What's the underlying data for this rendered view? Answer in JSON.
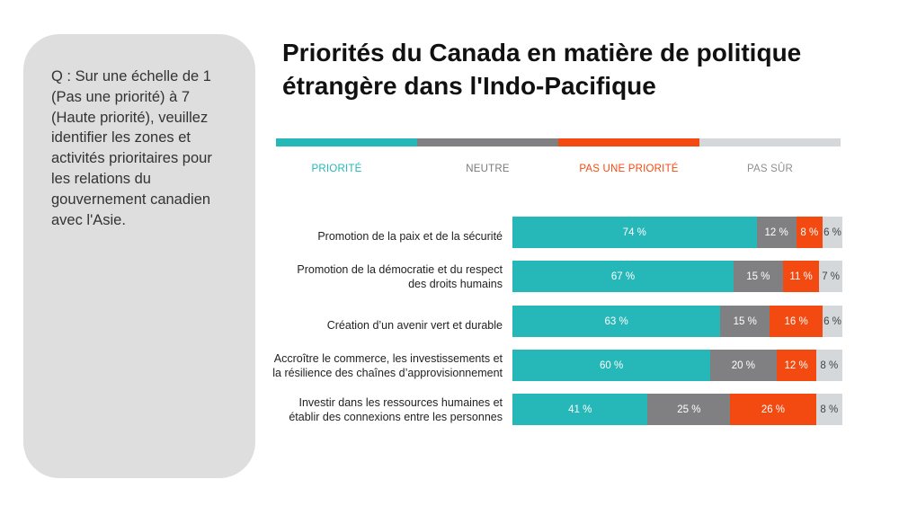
{
  "question": "Q : Sur une échelle de 1 (Pas une priorité) à 7 (Haute priorité), veuillez identifier les zones et activités prioritaires pour les relations du gouvernement canadien avec l'Asie.",
  "title_line1": "Priorités du Canada en matière de politique",
  "title_line2": "étrangère dans l'Indo-Pacifique",
  "colors": {
    "priorite": "#26b7b8",
    "neutre": "#808083",
    "pas_une_priorite": "#f24a10",
    "pas_sur": "#d4d8da"
  },
  "legend": [
    {
      "label": "PRIORITÉ",
      "color": "#26b7b8"
    },
    {
      "label": "NEUTRE",
      "color": "#7a7a7a"
    },
    {
      "label": "PAS UNE PRIORITÉ",
      "color": "#f24a10"
    },
    {
      "label": "PAS SÛR",
      "color": "#8e8e8e"
    }
  ],
  "chart_data": {
    "type": "bar",
    "stacked": true,
    "orientation": "horizontal",
    "categories": [
      "Promotion de la paix et de la sécurité",
      "Promotion de la démocratie et du respect des droits humains",
      "Création d’un avenir vert et durable",
      "Accroître le commerce, les investissements et la résilience des chaînes d’approvisionnement",
      "Investir dans les ressources humaines et établir des connexions entre les personnes"
    ],
    "category_lines": [
      [
        "Promotion de la paix et de la sécurité"
      ],
      [
        "Promotion de la démocratie et du respect",
        "des droits humains"
      ],
      [
        "Création d’un avenir vert et durable"
      ],
      [
        "Accroître le commerce, les investissements et",
        "la résilience des chaînes d’approvisionnement"
      ],
      [
        "Investir dans les ressources humaines et",
        "établir des connexions entre les personnes"
      ]
    ],
    "series": [
      {
        "name": "PRIORITÉ",
        "values": [
          74,
          67,
          63,
          60,
          41
        ]
      },
      {
        "name": "NEUTRE",
        "values": [
          12,
          15,
          15,
          20,
          25
        ]
      },
      {
        "name": "PAS UNE PRIORITÉ",
        "values": [
          8,
          11,
          16,
          12,
          26
        ]
      },
      {
        "name": "PAS SÛR",
        "values": [
          6,
          7,
          6,
          8,
          8
        ]
      }
    ],
    "value_suffix": " %",
    "title": "Priorités du Canada en matière de politique étrangère dans l'Indo-Pacifique",
    "xlim": [
      0,
      100
    ]
  }
}
